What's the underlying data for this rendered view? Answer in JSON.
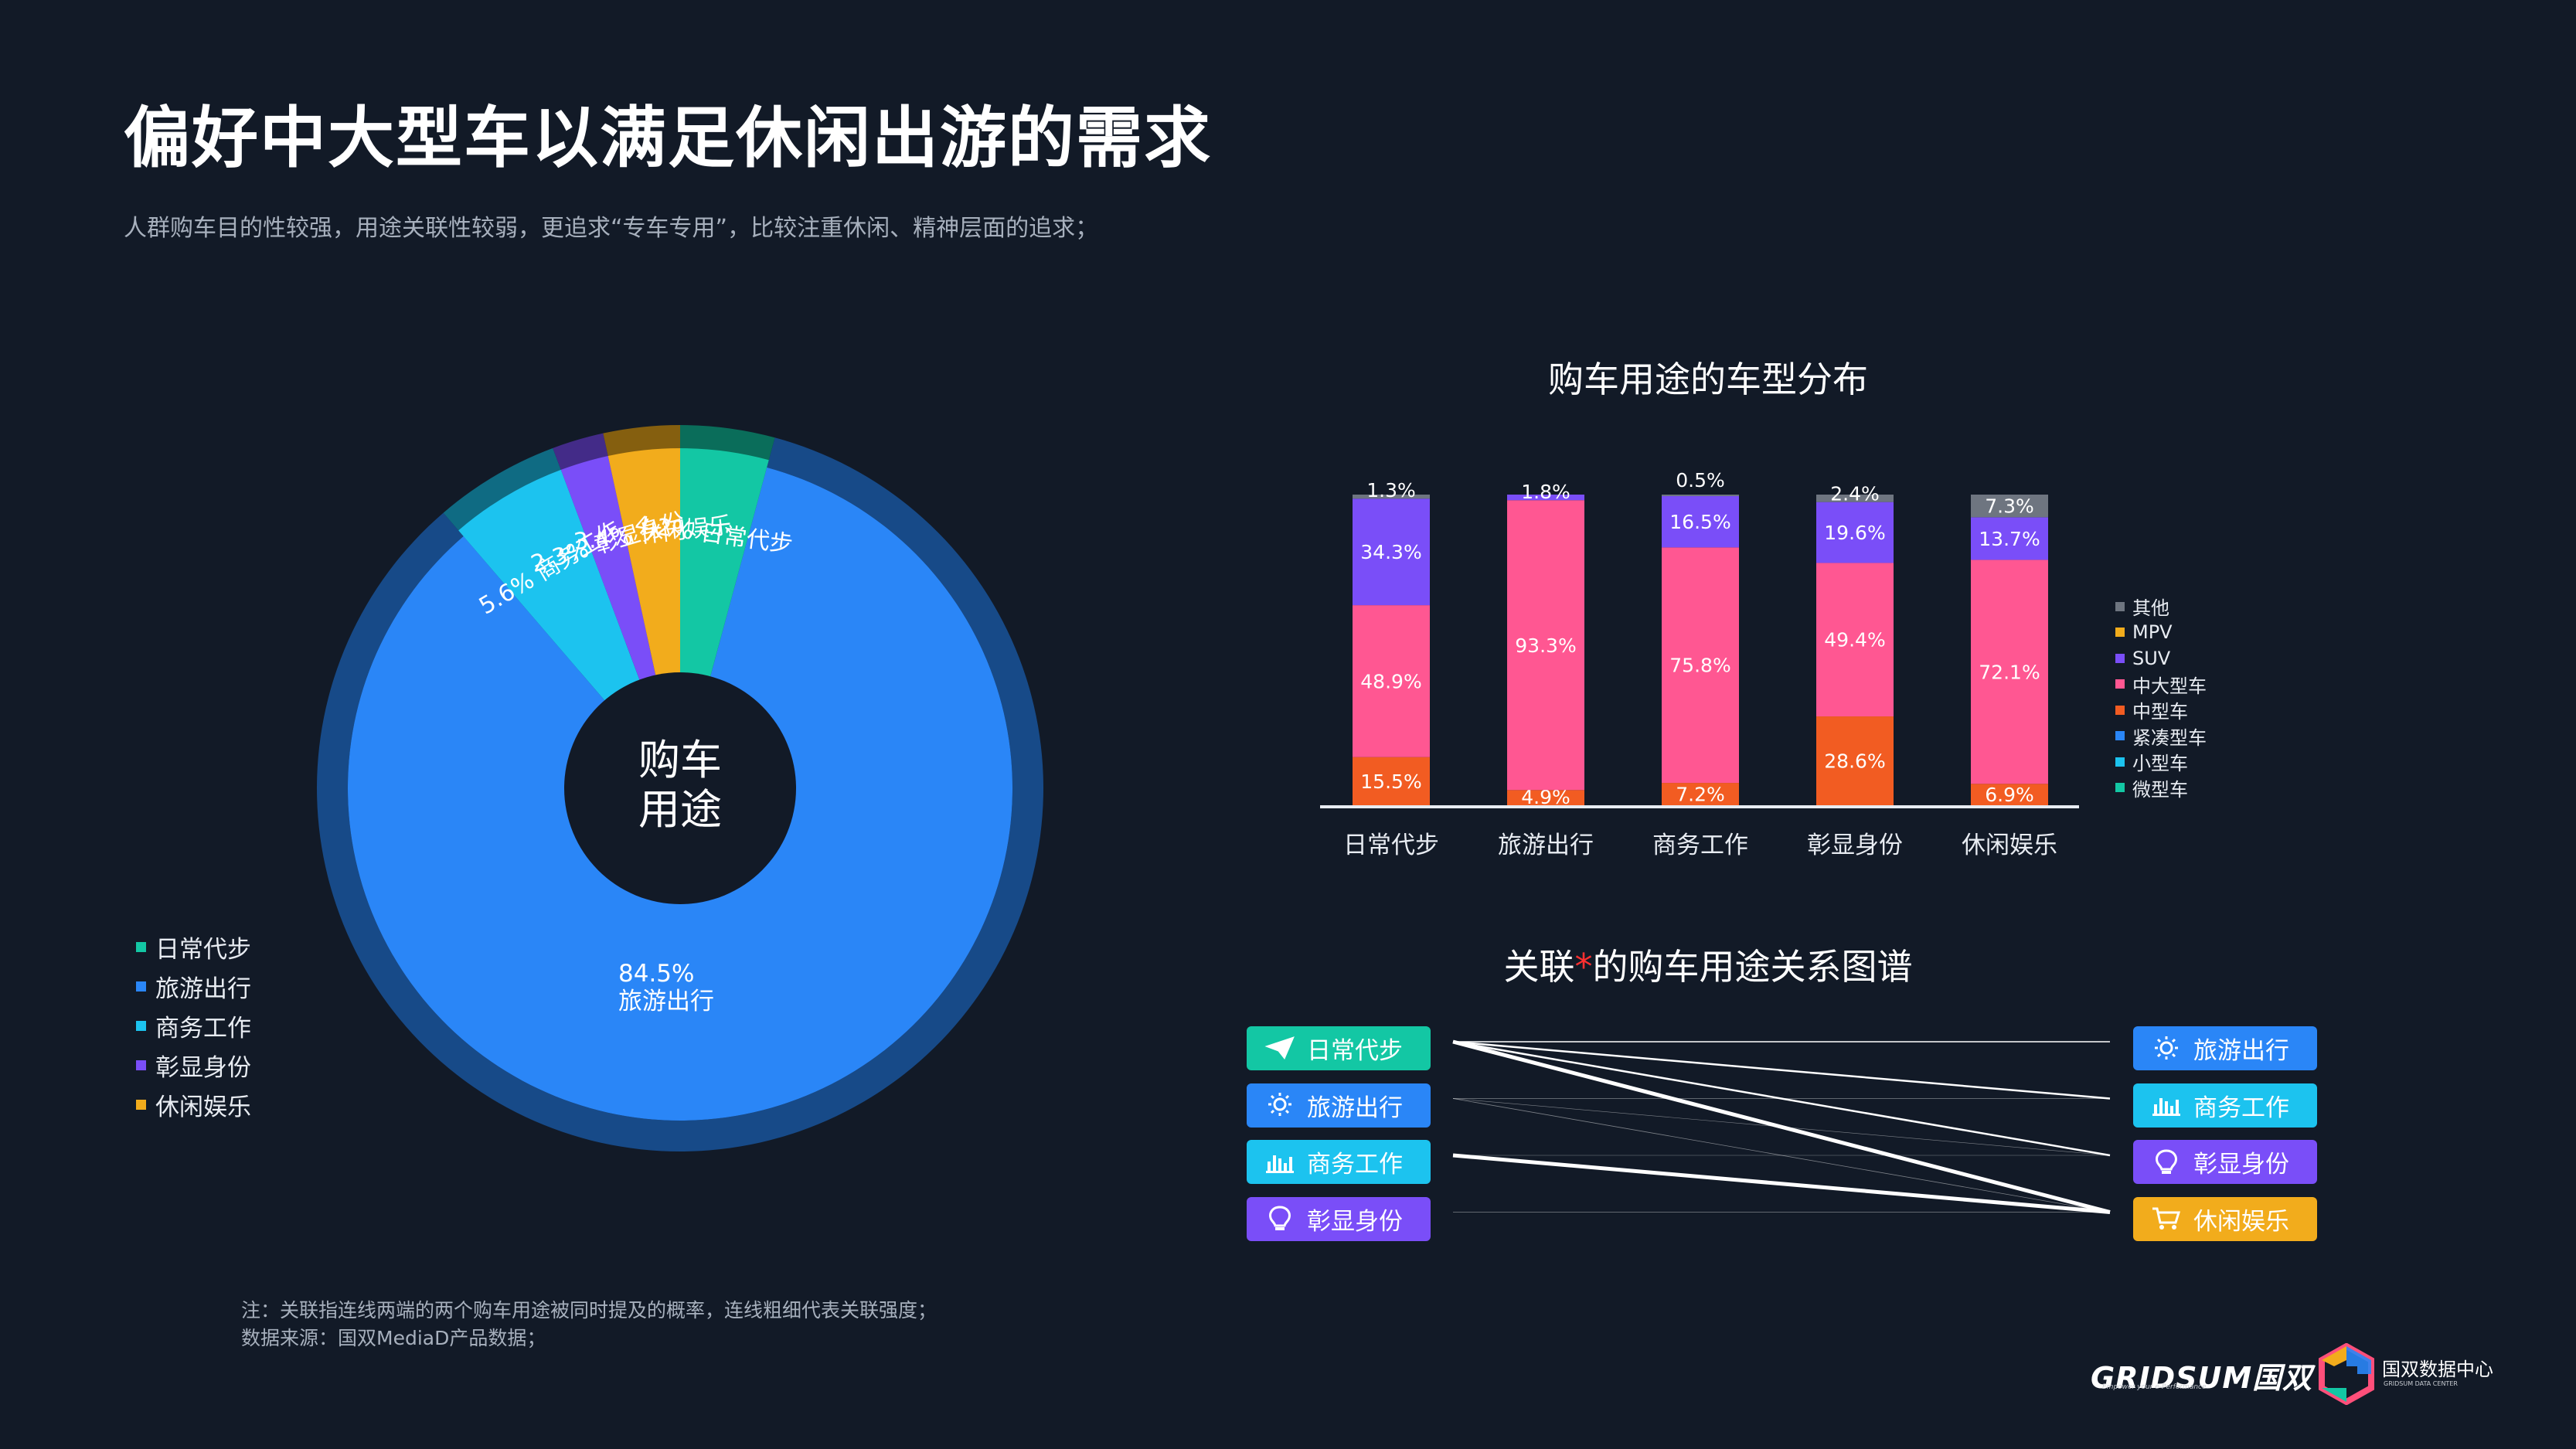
{
  "title": "偏好中大型车以满足休闲出游的需求",
  "subtitle": "人群购车目的性较强，用途关联性较弱，更追求“专车专用”，比较注重休闲、精神层面的追求；",
  "colors": {
    "background": "#121a27",
    "daily": "#13c7a4",
    "travel": "#2a86f7",
    "business": "#1cc3ef",
    "status": "#7a4ef8",
    "leisure": "#f2ac1c",
    "other": "#6e7580",
    "mpv": "#f2ac1c",
    "suv": "#7a4ef8",
    "midlarge": "#ff5792",
    "mid": "#f25c22",
    "compact": "#2a86f7",
    "small": "#1cc3ef",
    "micro": "#13c7a4"
  },
  "donut": {
    "center_line1": "购车",
    "center_line2": "用途",
    "slices": [
      {
        "label": "旅游出行",
        "value": 84.5,
        "pct": "84.5%",
        "color": "#2a86f7"
      },
      {
        "label": "商务工作",
        "value": 5.6,
        "pct": "5.6%",
        "color": "#1cc3ef"
      },
      {
        "label": "彰显身份",
        "value": 2.3,
        "pct": "2.3%",
        "color": "#7a4ef8"
      },
      {
        "label": "休闲娱乐",
        "value": 3.4,
        "pct": "3.4%",
        "color": "#f2ac1c"
      },
      {
        "label": "日常代步",
        "value": 4.2,
        "pct": "4.2%",
        "color": "#13c7a4"
      }
    ]
  },
  "legend_left": [
    {
      "label": "日常代步",
      "color": "#13c7a4"
    },
    {
      "label": "旅游出行",
      "color": "#2a86f7"
    },
    {
      "label": "商务工作",
      "color": "#1cc3ef"
    },
    {
      "label": "彰显身份",
      "color": "#7a4ef8"
    },
    {
      "label": "休闲娱乐",
      "color": "#f2ac1c"
    }
  ],
  "bar_chart_title": "购车用途的车型分布",
  "chart_data": [
    {
      "type": "pie",
      "title": "",
      "categories": [
        "日常代步",
        "旅游出行",
        "商务工作",
        "彰显身份",
        "休闲娱乐"
      ],
      "values": [
        4.2,
        84.5,
        5.6,
        2.3,
        3.4
      ],
      "unit": "%"
    },
    {
      "type": "bar",
      "stacked": true,
      "title": "购车用途的车型分布",
      "categories": [
        "日常代步",
        "旅游出行",
        "商务工作",
        "彰显身份",
        "休闲娱乐"
      ],
      "series": [
        {
          "name": "中型车",
          "color": "#f25c22",
          "values": [
            15.5,
            4.9,
            7.2,
            28.6,
            6.9
          ],
          "labels": [
            "15.5%",
            "4.9%",
            "7.2%",
            "28.6%",
            "6.9%"
          ]
        },
        {
          "name": "中大型车",
          "color": "#ff5792",
          "values": [
            48.9,
            93.3,
            75.8,
            49.4,
            72.1
          ],
          "labels": [
            "48.9%",
            "93.3%",
            "75.8%",
            "49.4%",
            "72.1%"
          ]
        },
        {
          "name": "SUV",
          "color": "#7a4ef8",
          "values": [
            34.3,
            1.8,
            16.5,
            19.6,
            13.7
          ],
          "labels": [
            "34.3%",
            "1.8%",
            "16.5%",
            "19.6%",
            "13.7%"
          ]
        },
        {
          "name": "其他",
          "color": "#6e7580",
          "values": [
            1.3,
            0,
            0.5,
            2.4,
            7.3
          ],
          "labels": [
            "1.3%",
            "",
            "0.5%",
            "2.4%",
            "7.3%"
          ]
        }
      ],
      "ylim": [
        0,
        100
      ],
      "legend_position": "right",
      "legend": [
        "其他",
        "MPV",
        "SUV",
        "中大型车",
        "中型车",
        "紧凑型车",
        "小型车",
        "微型车"
      ]
    }
  ],
  "legend_right": [
    {
      "label": "其他",
      "color": "#6e7580"
    },
    {
      "label": "MPV",
      "color": "#f2ac1c"
    },
    {
      "label": "SUV",
      "color": "#7a4ef8"
    },
    {
      "label": "中大型车",
      "color": "#ff5792"
    },
    {
      "label": "中型车",
      "color": "#f25c22"
    },
    {
      "label": "紧凑型车",
      "color": "#2a86f7"
    },
    {
      "label": "小型车",
      "color": "#1cc3ef"
    },
    {
      "label": "微型车",
      "color": "#13c7a4"
    }
  ],
  "network": {
    "title_part1": "关联",
    "title_star": "*",
    "title_part2": "的购车用途关系图谱",
    "left_nodes": [
      {
        "label": "日常代步",
        "icon": "paper-plane-icon",
        "color": "#13c7a4"
      },
      {
        "label": "旅游出行",
        "icon": "sun-icon",
        "color": "#2a86f7"
      },
      {
        "label": "商务工作",
        "icon": "bar-chart-icon",
        "color": "#1cc3ef"
      },
      {
        "label": "彰显身份",
        "icon": "lightbulb-icon",
        "color": "#7a4ef8"
      }
    ],
    "right_nodes": [
      {
        "label": "旅游出行",
        "icon": "sun-icon",
        "color": "#2a86f7"
      },
      {
        "label": "商务工作",
        "icon": "bar-chart-icon",
        "color": "#1cc3ef"
      },
      {
        "label": "彰显身份",
        "icon": "lightbulb-icon",
        "color": "#7a4ef8"
      },
      {
        "label": "休闲娱乐",
        "icon": "cart-icon",
        "color": "#f2ac1c"
      }
    ],
    "links": [
      {
        "from": 0,
        "to": 0,
        "weight": 1.5
      },
      {
        "from": 0,
        "to": 1,
        "weight": 2.5
      },
      {
        "from": 0,
        "to": 2,
        "weight": 2.5
      },
      {
        "from": 0,
        "to": 3,
        "weight": 5
      },
      {
        "from": 1,
        "to": 1,
        "weight": 0.8
      },
      {
        "from": 1,
        "to": 2,
        "weight": 0.6
      },
      {
        "from": 1,
        "to": 3,
        "weight": 0.8
      },
      {
        "from": 2,
        "to": 2,
        "weight": 0.6
      },
      {
        "from": 2,
        "to": 3,
        "weight": 5
      },
      {
        "from": 3,
        "to": 3,
        "weight": 0.8
      }
    ]
  },
  "footnote_line1": "注：关联指连线两端的两个购车用途被同时提及的概率，连线粗细代表关联强度；",
  "footnote_line2": "数据来源：国双MediaD产品数据；",
  "brand_name": "GRIDSUM国双",
  "brand_tagline": "Empower your e-Performance",
  "logo2_name": "国双数据中心",
  "logo2_tagline": "GRIDSUM DATA CENTER"
}
